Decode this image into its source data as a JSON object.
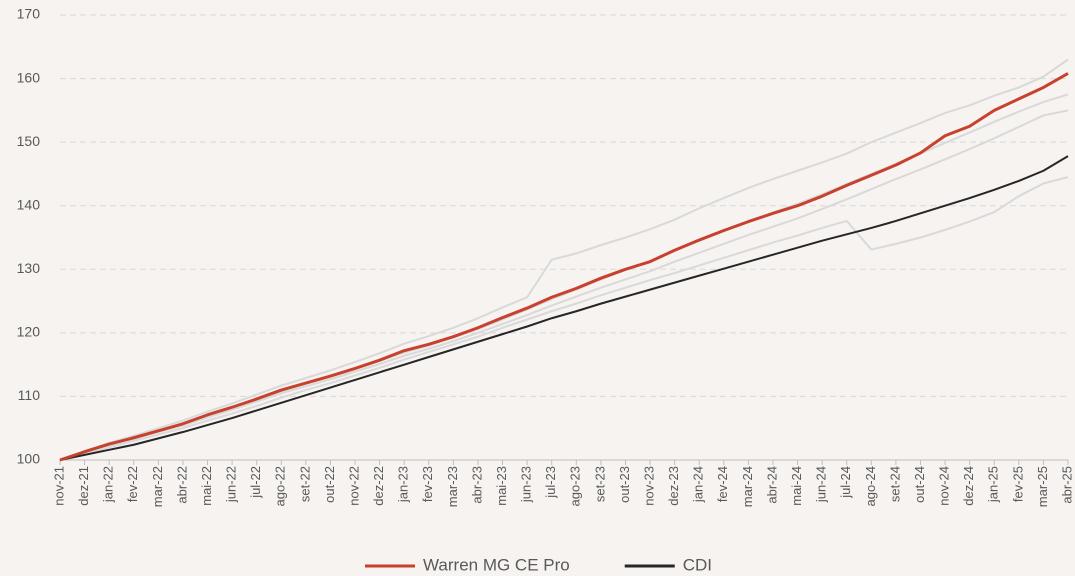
{
  "chart_data": {
    "type": "line",
    "categories": [
      "nov-21",
      "dez-21",
      "jan-22",
      "fev-22",
      "mar-22",
      "abr-22",
      "mai-22",
      "jun-22",
      "jul-22",
      "ago-22",
      "set-22",
      "out-22",
      "nov-22",
      "dez-22",
      "jan-23",
      "fev-23",
      "mar-23",
      "abr-23",
      "mai-23",
      "jun-23",
      "jul-23",
      "ago-23",
      "set-23",
      "out-23",
      "nov-23",
      "dez-23",
      "jan-24",
      "fev-24",
      "mar-24",
      "abr-24",
      "mai-24",
      "jun-24",
      "jul-24",
      "ago-24",
      "set-24",
      "out-24",
      "nov-24",
      "dez-24",
      "jan-25",
      "fev-25",
      "mar-25",
      "abr-25"
    ],
    "ylim": [
      100,
      170
    ],
    "yticks": [
      100,
      110,
      120,
      130,
      140,
      150,
      160,
      170
    ],
    "grid": true,
    "legend": "bottom",
    "series": [
      {
        "color": "#d9d9d9",
        "values": [
          100,
          101.4,
          102.7,
          103.8,
          105,
          106.2,
          107.6,
          108.9,
          110.3,
          111.7,
          112.9,
          114.1,
          115.4,
          116.8,
          118.3,
          119.5,
          120.8,
          122.3,
          124,
          125.6,
          131.5,
          132.5,
          133.8,
          135,
          136.3,
          137.8,
          139.6,
          141.2,
          142.8,
          144.2,
          145.5,
          146.8,
          148.2,
          150,
          151.5,
          153,
          154.6,
          155.8,
          157.3,
          158.6,
          160.3,
          163
        ]
      },
      {
        "color": "#d9d9d9",
        "values": [
          100,
          101.2,
          102.3,
          103.3,
          104.4,
          105.4,
          106.7,
          107.9,
          109.2,
          110.5,
          111.6,
          112.7,
          113.9,
          115.1,
          116.4,
          117.5,
          118.7,
          120,
          121.4,
          122.8,
          124.3,
          125.7,
          127.1,
          128.4,
          129.7,
          131.2,
          132.6,
          134,
          135.4,
          136.7,
          138,
          139.5,
          141,
          142.6,
          144.2,
          145.7,
          147.3,
          148.9,
          150.6,
          152.4,
          154.2,
          155
        ]
      },
      {
        "color": "#d9d9d9",
        "values": [
          100,
          101.3,
          102.4,
          103.5,
          104.6,
          105.7,
          107,
          108.2,
          109.5,
          110.8,
          112,
          113.1,
          114.3,
          115.6,
          116.9,
          118,
          119.3,
          120.6,
          122.1,
          123.7,
          125.3,
          126.8,
          128.4,
          129.9,
          131.3,
          132.9,
          134.5,
          136,
          137.4,
          138.9,
          140.3,
          141.8,
          143.4,
          145,
          146.6,
          148.2,
          149.9,
          151.5,
          153.2,
          154.8,
          156.3,
          157.5
        ]
      },
      {
        "color": "#d9d9d9",
        "values": [
          100,
          101,
          102,
          103,
          104,
          105,
          106.2,
          107.3,
          108.5,
          109.8,
          111,
          112.1,
          113.3,
          114.5,
          115.8,
          117,
          118.2,
          119.4,
          120.8,
          122.1,
          123.4,
          124.6,
          125.9,
          127.1,
          128.3,
          129.4,
          130.6,
          131.8,
          133,
          134.2,
          135.3,
          136.5,
          137.6,
          133.1,
          134,
          135,
          136.2,
          137.5,
          139,
          141.5,
          143.5,
          144.5
        ]
      },
      {
        "name": "CDI",
        "color": "#262626",
        "values": [
          100,
          100.8,
          101.6,
          102.4,
          103.4,
          104.4,
          105.5,
          106.6,
          107.8,
          109,
          110.2,
          111.4,
          112.6,
          113.8,
          115,
          116.2,
          117.4,
          118.6,
          119.8,
          121,
          122.3,
          123.4,
          124.6,
          125.7,
          126.8,
          127.9,
          129,
          130.1,
          131.2,
          132.3,
          133.4,
          134.5,
          135.5,
          136.5,
          137.6,
          138.8,
          140,
          141.2,
          142.5,
          143.9,
          145.5,
          147.8
        ]
      },
      {
        "name": "Warren MG CE Pro",
        "color": "#c8412d",
        "values": [
          100,
          101.3,
          102.5,
          103.5,
          104.6,
          105.7,
          107.1,
          108.3,
          109.6,
          111,
          112.1,
          113.2,
          114.4,
          115.7,
          117.2,
          118.2,
          119.4,
          120.8,
          122.4,
          123.9,
          125.6,
          127,
          128.6,
          130,
          131.2,
          133,
          134.6,
          136.1,
          137.5,
          138.8,
          140,
          141.5,
          143.2,
          144.8,
          146.4,
          148.3,
          151,
          152.5,
          155,
          156.8,
          158.6,
          160.8
        ]
      }
    ]
  }
}
